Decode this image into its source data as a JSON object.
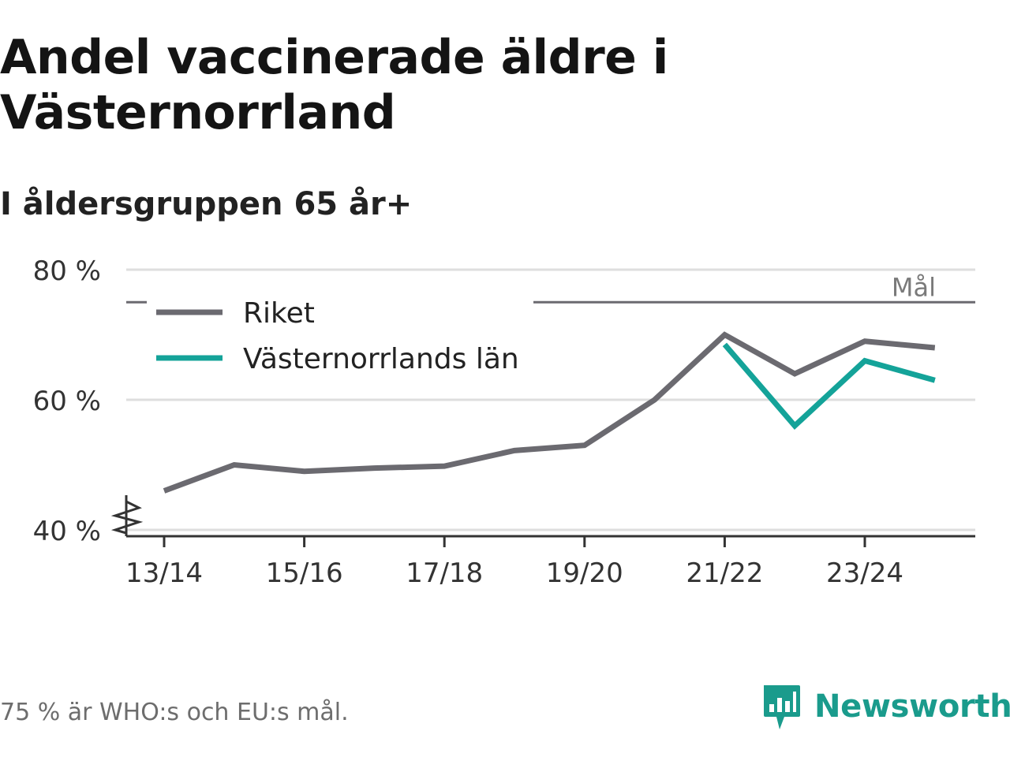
{
  "title": "Andel vaccinerade äldre i Västernorrland",
  "subtitle": "I åldersgruppen 65 år+",
  "footnote": "75 % är WHO:s och EU:s mål.",
  "brand": {
    "name": "Newsworthy",
    "color": "#1a9b8c",
    "icon": "newsworthy-logo-icon"
  },
  "chart_data": {
    "type": "line",
    "categories": [
      "13/14",
      "14/15",
      "15/16",
      "16/17",
      "17/18",
      "18/19",
      "19/20",
      "20/21",
      "21/22",
      "22/23",
      "23/24",
      "24/25"
    ],
    "x_tick_labels": [
      "13/14",
      "15/16",
      "17/18",
      "19/20",
      "21/22",
      "23/24"
    ],
    "y_ticks": [
      40,
      60,
      80
    ],
    "y_tick_labels": [
      "40 %",
      "60 %",
      "80 %"
    ],
    "ylim": [
      40,
      80
    ],
    "y_axis_break": true,
    "grid": true,
    "legend_position": "top-left",
    "target": {
      "value": 75,
      "label": "Mål",
      "color": "#6b6a70"
    },
    "series": [
      {
        "name": "Riket",
        "color": "#6b6a70",
        "values": [
          46,
          50,
          49,
          49.5,
          49.8,
          52.2,
          53,
          60,
          70,
          64,
          69,
          68
        ]
      },
      {
        "name": "Västernorrlands län",
        "color": "#14a399",
        "values": [
          null,
          null,
          null,
          null,
          null,
          null,
          null,
          null,
          68.5,
          56,
          66,
          63
        ]
      }
    ]
  }
}
